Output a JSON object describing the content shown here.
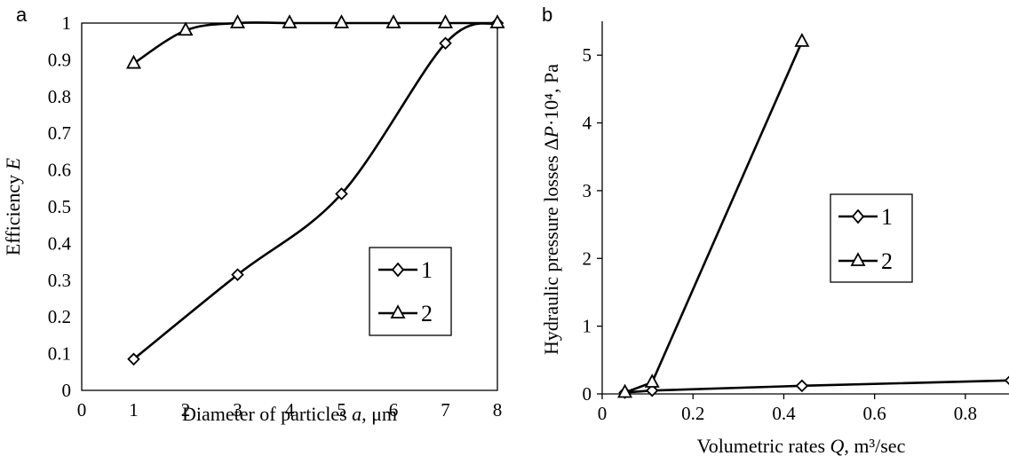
{
  "chart_data": [
    {
      "panel_label": "a",
      "type": "line",
      "xlabel_text": "Diameter  of particles ",
      "xlabel_var": "a",
      "xlabel_unit": ", μm",
      "ylabel_text": "Efficiency ",
      "ylabel_var": "E",
      "xlim": [
        0,
        8
      ],
      "ylim": [
        0,
        1
      ],
      "x_ticks": [
        "0",
        "1",
        "2",
        "3",
        "4",
        "5",
        "6",
        "7",
        "8"
      ],
      "y_ticks": [
        "0",
        "0.1",
        "0.2",
        "0.3",
        "0.4",
        "0.5",
        "0.6",
        "0.7",
        "0.8",
        "0.9",
        "1"
      ],
      "x_tick_values": [
        0,
        1,
        2,
        3,
        4,
        5,
        6,
        7,
        8
      ],
      "y_tick_values": [
        0,
        0.1,
        0.2,
        0.3,
        0.4,
        0.5,
        0.6,
        0.7,
        0.8,
        0.9,
        1
      ],
      "legend_placement": "lower-right",
      "grid": false,
      "smooth": true,
      "series": [
        {
          "name": "1",
          "marker": "diamond",
          "x": [
            1,
            3,
            5,
            7,
            8
          ],
          "y": [
            0.085,
            0.315,
            0.535,
            0.945,
            1.0
          ]
        },
        {
          "name": "2",
          "marker": "triangle",
          "x": [
            1,
            2,
            3,
            4,
            5,
            6,
            7,
            8
          ],
          "y": [
            0.89,
            0.98,
            1.0,
            1.0,
            1.0,
            1.0,
            1.0,
            1.0
          ]
        }
      ]
    },
    {
      "panel_label": "b",
      "type": "line",
      "xlabel_text": "Volumetric  rates ",
      "xlabel_var": "Q",
      "xlabel_unit": ", m³/sec",
      "ylabel_text": "Hydraulic  pressure  losses  Δ",
      "ylabel_var": "P",
      "ylabel_unit": "·10⁴, Pa",
      "xlim": [
        0,
        0.9
      ],
      "ylim": [
        0,
        5.5
      ],
      "x_ticks": [
        "0",
        "0.2",
        "0.4",
        "0.6",
        "0.8"
      ],
      "y_ticks": [
        "0",
        "1",
        "2",
        "3",
        "4",
        "5"
      ],
      "x_tick_values": [
        0,
        0.2,
        0.4,
        0.6,
        0.8
      ],
      "y_tick_values": [
        0,
        1,
        2,
        3,
        4,
        5
      ],
      "legend_placement": "center-right",
      "grid": false,
      "smooth": false,
      "series": [
        {
          "name": "1",
          "marker": "diamond",
          "x": [
            0.05,
            0.11,
            0.44,
            0.9
          ],
          "y": [
            0.02,
            0.05,
            0.12,
            0.2
          ]
        },
        {
          "name": "2",
          "marker": "triangle",
          "x": [
            0.05,
            0.11,
            0.44
          ],
          "y": [
            0.02,
            0.17,
            5.2
          ]
        }
      ]
    }
  ]
}
